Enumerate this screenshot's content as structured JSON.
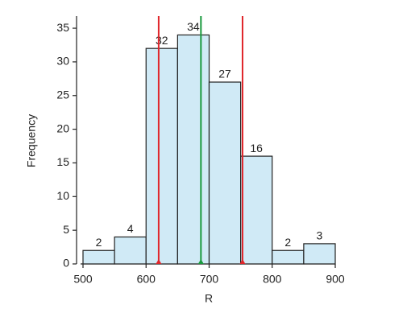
{
  "chart_data": {
    "type": "histogram",
    "xlabel": "R",
    "ylabel": "Frequency",
    "bins": [
      500,
      550,
      600,
      650,
      700,
      750,
      800,
      850,
      900
    ],
    "values": [
      2,
      4,
      32,
      34,
      27,
      16,
      2,
      3
    ],
    "color": "#d0eaf6",
    "edgecolor": "#222222",
    "xlim": [
      500,
      900
    ],
    "xticks": [
      500,
      600,
      700,
      800,
      900
    ],
    "ylim": [
      0,
      36.8
    ],
    "yticks": [
      0,
      5,
      10,
      15,
      20,
      25,
      30,
      35
    ],
    "vlines": [
      {
        "x": 620,
        "color": "#e0262b"
      },
      {
        "x": 687,
        "color": "#1a9a3e"
      },
      {
        "x": 753,
        "color": "#e0262b"
      }
    ]
  }
}
